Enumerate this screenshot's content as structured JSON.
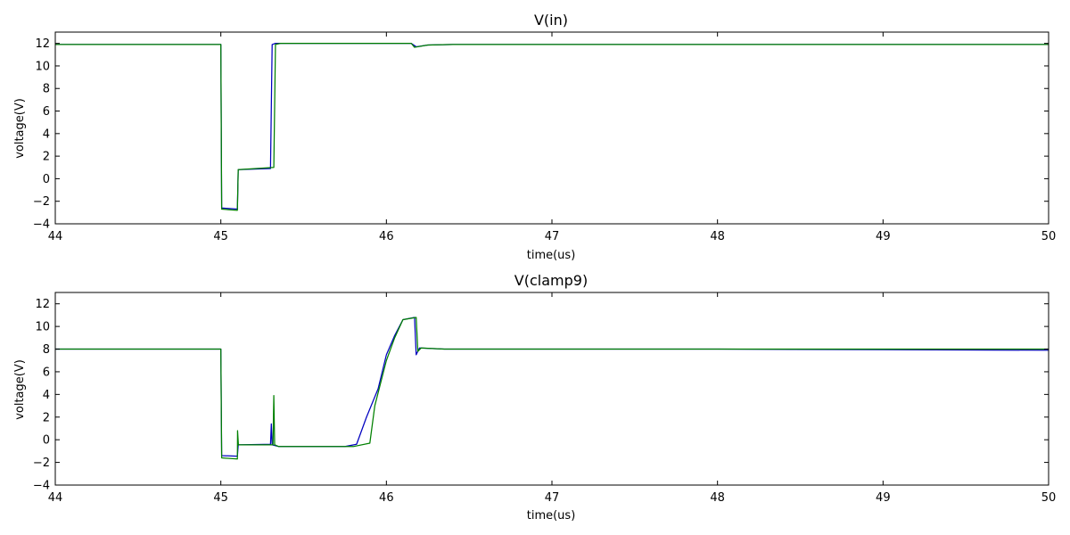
{
  "chart_data": [
    {
      "type": "line",
      "title": "V(in)",
      "xlabel": "time(us)",
      "ylabel": "voltage(V)",
      "xlim": [
        44,
        50
      ],
      "ylim": [
        -4,
        13
      ],
      "xticks": [
        44,
        45,
        46,
        47,
        48,
        49,
        50
      ],
      "yticks": [
        -4,
        -2,
        0,
        2,
        4,
        6,
        8,
        10,
        12
      ],
      "grid": false,
      "series": [
        {
          "color": "#0000bf",
          "points": [
            [
              44,
              11.9
            ],
            [
              45.0,
              11.9
            ],
            [
              45.005,
              -2.6
            ],
            [
              45.1,
              -2.7
            ],
            [
              45.105,
              0.8
            ],
            [
              45.3,
              0.9
            ],
            [
              45.31,
              11.9
            ],
            [
              45.33,
              12.0
            ],
            [
              45.9,
              12.0
            ],
            [
              46.15,
              12.0
            ],
            [
              46.18,
              11.7
            ],
            [
              46.25,
              11.85
            ],
            [
              46.4,
              11.9
            ],
            [
              50,
              11.9
            ]
          ]
        },
        {
          "color": "#008000",
          "points": [
            [
              44,
              11.9
            ],
            [
              45.0,
              11.9
            ],
            [
              45.005,
              -2.7
            ],
            [
              45.1,
              -2.8
            ],
            [
              45.105,
              0.8
            ],
            [
              45.32,
              1.0
            ],
            [
              45.33,
              11.9
            ],
            [
              45.36,
              12.0
            ],
            [
              45.9,
              12.0
            ],
            [
              46.15,
              12.0
            ],
            [
              46.17,
              11.65
            ],
            [
              46.25,
              11.85
            ],
            [
              46.4,
              11.9
            ],
            [
              50,
              11.9
            ]
          ]
        }
      ]
    },
    {
      "type": "line",
      "title": "V(clamp9)",
      "xlabel": "time(us)",
      "ylabel": "voltage(V)",
      "xlim": [
        44,
        50
      ],
      "ylim": [
        -4,
        13
      ],
      "xticks": [
        44,
        45,
        46,
        47,
        48,
        49,
        50
      ],
      "yticks": [
        -4,
        -2,
        0,
        2,
        4,
        6,
        8,
        10,
        12
      ],
      "grid": false,
      "series": [
        {
          "color": "#0000bf",
          "points": [
            [
              44,
              8.0
            ],
            [
              45.0,
              8.0
            ],
            [
              45.005,
              -1.4
            ],
            [
              45.1,
              -1.45
            ],
            [
              45.105,
              -0.45
            ],
            [
              45.3,
              -0.4
            ],
            [
              45.305,
              1.4
            ],
            [
              45.31,
              -0.45
            ],
            [
              45.35,
              -0.6
            ],
            [
              45.6,
              -0.6
            ],
            [
              45.75,
              -0.6
            ],
            [
              45.82,
              -0.4
            ],
            [
              45.88,
              2.0
            ],
            [
              45.95,
              4.5
            ],
            [
              46.0,
              7.5
            ],
            [
              46.05,
              9.2
            ],
            [
              46.1,
              10.6
            ],
            [
              46.17,
              10.8
            ],
            [
              46.18,
              7.5
            ],
            [
              46.2,
              8.1
            ],
            [
              46.35,
              8.0
            ],
            [
              47.0,
              8.0
            ],
            [
              48.0,
              8.0
            ],
            [
              49.0,
              7.95
            ],
            [
              50,
              7.9
            ]
          ]
        },
        {
          "color": "#008000",
          "points": [
            [
              44,
              8.0
            ],
            [
              45.0,
              8.0
            ],
            [
              45.005,
              -1.6
            ],
            [
              45.1,
              -1.7
            ],
            [
              45.101,
              0.8
            ],
            [
              45.106,
              -0.45
            ],
            [
              45.3,
              -0.45
            ],
            [
              45.315,
              -0.45
            ],
            [
              45.32,
              3.9
            ],
            [
              45.325,
              -0.45
            ],
            [
              45.35,
              -0.6
            ],
            [
              45.6,
              -0.6
            ],
            [
              45.8,
              -0.6
            ],
            [
              45.9,
              -0.3
            ],
            [
              45.93,
              3.0
            ],
            [
              46.0,
              7.0
            ],
            [
              46.05,
              9.0
            ],
            [
              46.1,
              10.6
            ],
            [
              46.18,
              10.8
            ],
            [
              46.19,
              7.8
            ],
            [
              46.21,
              8.1
            ],
            [
              46.35,
              8.0
            ],
            [
              47.0,
              8.0
            ],
            [
              48.0,
              8.0
            ],
            [
              49.0,
              8.0
            ],
            [
              50,
              8.0
            ]
          ]
        }
      ]
    }
  ]
}
